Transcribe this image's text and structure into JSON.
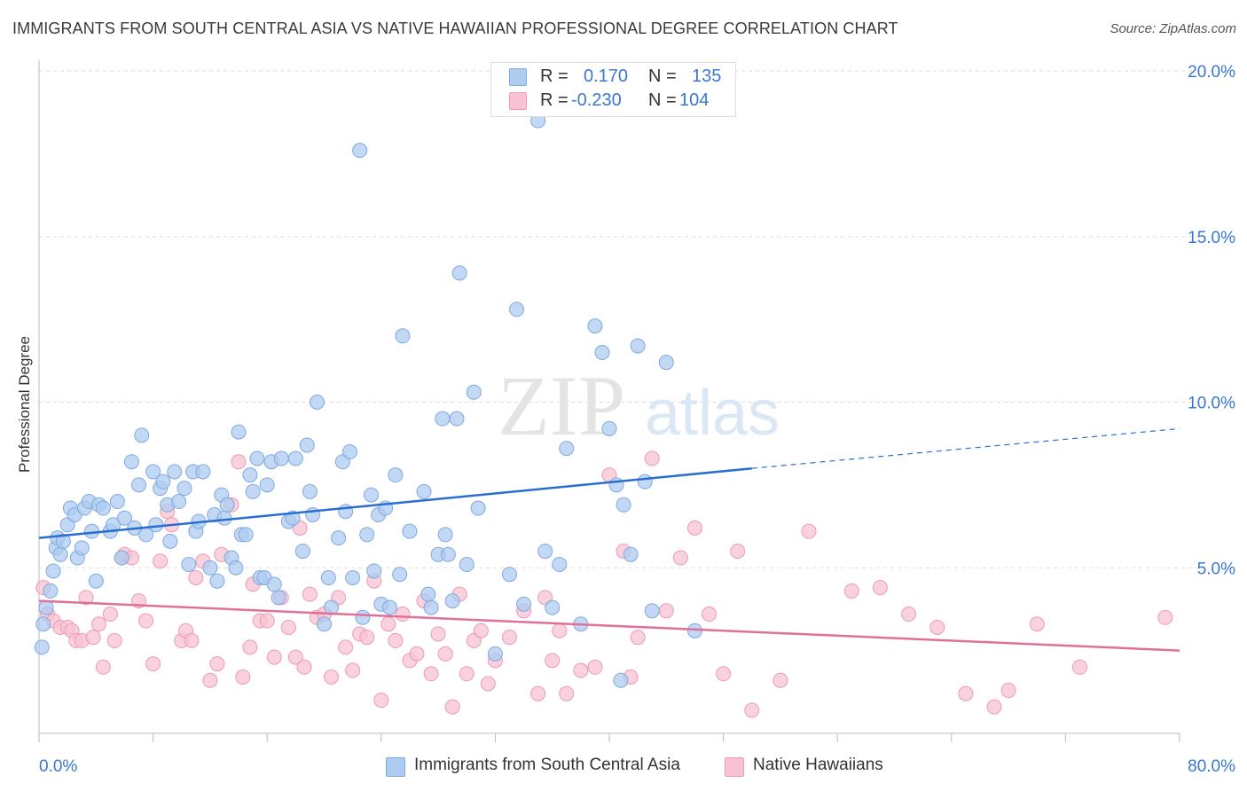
{
  "title": "IMMIGRANTS FROM SOUTH CENTRAL ASIA VS NATIVE HAWAIIAN PROFESSIONAL DEGREE CORRELATION CHART",
  "source": "Source: ZipAtlas.com",
  "watermark": {
    "zip": "ZIP",
    "atlas": "atlas"
  },
  "legend": {
    "r_label": "R =",
    "n_label": "N =",
    "series": [
      {
        "r": "0.170",
        "n": "135"
      },
      {
        "r": "-0.230",
        "n": "104"
      }
    ]
  },
  "colors": {
    "blue_fill": "#aecbf0",
    "blue_stroke": "#7eaae0",
    "blue_line": "#2a6fd0",
    "pink_fill": "#f7c3d2",
    "pink_stroke": "#ee9ab4",
    "pink_line": "#e0709a",
    "axis_text": "#3a78d0",
    "grid": "#dddddd"
  },
  "chart_data": {
    "type": "scatter",
    "title": "IMMIGRANTS FROM SOUTH CENTRAL ASIA VS NATIVE HAWAIIAN PROFESSIONAL DEGREE CORRELATION CHART",
    "xlabel": "",
    "ylabel": "Professional Degree",
    "xlim": [
      0,
      80
    ],
    "ylim": [
      0,
      20
    ],
    "x_tick_labels": [
      "0.0%",
      "80.0%"
    ],
    "y_ticks": [
      5,
      10,
      15,
      20
    ],
    "y_tick_labels": [
      "5.0%",
      "10.0%",
      "15.0%",
      "20.0%"
    ],
    "grid": true,
    "legend_position": "top-center",
    "series": [
      {
        "name": "Immigrants from South Central Asia",
        "color": "#aecbf0",
        "trend": {
          "x": [
            0,
            50
          ],
          "y": [
            5.9,
            8.0
          ],
          "dashed_to": [
            80,
            9.2
          ]
        },
        "points": [
          [
            0.2,
            2.6
          ],
          [
            0.3,
            3.3
          ],
          [
            0.5,
            3.8
          ],
          [
            0.8,
            4.3
          ],
          [
            1.0,
            4.9
          ],
          [
            1.2,
            5.6
          ],
          [
            1.3,
            5.9
          ],
          [
            1.5,
            5.4
          ],
          [
            1.7,
            5.8
          ],
          [
            2.0,
            6.3
          ],
          [
            2.2,
            6.8
          ],
          [
            2.5,
            6.6
          ],
          [
            2.7,
            5.3
          ],
          [
            3.0,
            5.6
          ],
          [
            3.2,
            6.8
          ],
          [
            3.5,
            7.0
          ],
          [
            3.7,
            6.1
          ],
          [
            4.0,
            4.6
          ],
          [
            4.2,
            6.9
          ],
          [
            4.5,
            6.8
          ],
          [
            5.0,
            6.1
          ],
          [
            5.2,
            6.3
          ],
          [
            5.5,
            7.0
          ],
          [
            5.8,
            5.3
          ],
          [
            6.0,
            6.5
          ],
          [
            6.5,
            8.2
          ],
          [
            6.7,
            6.2
          ],
          [
            7.0,
            7.5
          ],
          [
            7.2,
            9.0
          ],
          [
            7.5,
            6.0
          ],
          [
            8.0,
            7.9
          ],
          [
            8.2,
            6.3
          ],
          [
            8.5,
            7.4
          ],
          [
            8.7,
            7.6
          ],
          [
            9.0,
            6.9
          ],
          [
            9.2,
            5.8
          ],
          [
            9.5,
            7.9
          ],
          [
            9.8,
            7.0
          ],
          [
            10.2,
            7.4
          ],
          [
            10.5,
            5.1
          ],
          [
            10.8,
            7.9
          ],
          [
            11.0,
            6.1
          ],
          [
            11.2,
            6.4
          ],
          [
            11.5,
            7.9
          ],
          [
            12.0,
            5.0
          ],
          [
            12.3,
            6.6
          ],
          [
            12.5,
            4.6
          ],
          [
            12.8,
            7.2
          ],
          [
            13.0,
            6.5
          ],
          [
            13.2,
            6.9
          ],
          [
            13.5,
            5.3
          ],
          [
            13.8,
            5.0
          ],
          [
            14.0,
            9.1
          ],
          [
            14.2,
            6.0
          ],
          [
            14.5,
            6.0
          ],
          [
            14.8,
            7.8
          ],
          [
            15.0,
            7.3
          ],
          [
            15.3,
            8.3
          ],
          [
            15.5,
            4.7
          ],
          [
            15.8,
            4.7
          ],
          [
            16.0,
            7.5
          ],
          [
            16.3,
            8.2
          ],
          [
            16.5,
            4.5
          ],
          [
            16.8,
            4.1
          ],
          [
            17.0,
            8.3
          ],
          [
            17.5,
            6.4
          ],
          [
            17.8,
            6.5
          ],
          [
            18.0,
            8.3
          ],
          [
            18.5,
            5.5
          ],
          [
            18.8,
            8.7
          ],
          [
            19.0,
            7.3
          ],
          [
            19.2,
            6.6
          ],
          [
            19.5,
            10.0
          ],
          [
            20.0,
            3.3
          ],
          [
            20.3,
            4.7
          ],
          [
            20.5,
            3.8
          ],
          [
            21.0,
            5.9
          ],
          [
            21.3,
            8.2
          ],
          [
            21.5,
            6.7
          ],
          [
            21.8,
            8.5
          ],
          [
            22.0,
            4.7
          ],
          [
            22.5,
            17.6
          ],
          [
            22.7,
            3.5
          ],
          [
            23.0,
            6.0
          ],
          [
            23.3,
            7.2
          ],
          [
            23.5,
            4.9
          ],
          [
            23.8,
            6.6
          ],
          [
            24.0,
            3.9
          ],
          [
            24.3,
            6.8
          ],
          [
            24.6,
            3.8
          ],
          [
            25.0,
            7.8
          ],
          [
            25.3,
            4.8
          ],
          [
            25.5,
            12.0
          ],
          [
            26.0,
            6.1
          ],
          [
            27.0,
            7.3
          ],
          [
            27.3,
            4.2
          ],
          [
            27.5,
            3.8
          ],
          [
            28.0,
            5.4
          ],
          [
            28.3,
            9.5
          ],
          [
            28.5,
            6.0
          ],
          [
            28.7,
            5.4
          ],
          [
            29.0,
            4.0
          ],
          [
            29.3,
            9.5
          ],
          [
            29.5,
            13.9
          ],
          [
            30.0,
            5.1
          ],
          [
            30.5,
            10.3
          ],
          [
            30.8,
            6.8
          ],
          [
            32.0,
            2.4
          ],
          [
            33.0,
            4.8
          ],
          [
            33.5,
            12.8
          ],
          [
            34.0,
            3.9
          ],
          [
            35.0,
            18.5
          ],
          [
            35.5,
            5.5
          ],
          [
            36.0,
            3.8
          ],
          [
            36.5,
            5.1
          ],
          [
            37.0,
            8.6
          ],
          [
            38.0,
            3.3
          ],
          [
            39.0,
            12.3
          ],
          [
            39.5,
            11.5
          ],
          [
            40.0,
            9.2
          ],
          [
            40.5,
            7.5
          ],
          [
            40.8,
            1.6
          ],
          [
            41.0,
            6.9
          ],
          [
            41.5,
            5.4
          ],
          [
            42.0,
            11.7
          ],
          [
            42.5,
            7.6
          ],
          [
            43.0,
            3.7
          ],
          [
            44.0,
            11.2
          ],
          [
            46.0,
            3.1
          ]
        ]
      },
      {
        "name": "Native Hawaiians",
        "color": "#f7c3d2",
        "trend": {
          "x": [
            0,
            80
          ],
          "y": [
            4.0,
            2.5
          ]
        },
        "points": [
          [
            0.3,
            4.4
          ],
          [
            0.6,
            3.6
          ],
          [
            1.0,
            3.4
          ],
          [
            1.5,
            3.2
          ],
          [
            2.0,
            3.2
          ],
          [
            2.3,
            3.1
          ],
          [
            2.6,
            2.8
          ],
          [
            3.0,
            2.8
          ],
          [
            3.3,
            4.1
          ],
          [
            3.8,
            2.9
          ],
          [
            4.2,
            3.3
          ],
          [
            4.5,
            2.0
          ],
          [
            5.0,
            3.6
          ],
          [
            5.3,
            2.8
          ],
          [
            5.8,
            5.3
          ],
          [
            6.0,
            5.4
          ],
          [
            6.5,
            5.3
          ],
          [
            7.0,
            4.0
          ],
          [
            7.5,
            3.4
          ],
          [
            8.0,
            2.1
          ],
          [
            8.5,
            5.2
          ],
          [
            9.0,
            6.7
          ],
          [
            9.3,
            6.3
          ],
          [
            10.0,
            2.8
          ],
          [
            10.3,
            3.1
          ],
          [
            10.7,
            2.8
          ],
          [
            11.0,
            4.7
          ],
          [
            11.5,
            5.2
          ],
          [
            12.0,
            1.6
          ],
          [
            12.5,
            2.1
          ],
          [
            12.8,
            5.4
          ],
          [
            13.5,
            6.9
          ],
          [
            14.0,
            8.2
          ],
          [
            14.3,
            1.7
          ],
          [
            14.8,
            2.6
          ],
          [
            15.0,
            4.5
          ],
          [
            15.5,
            3.4
          ],
          [
            16.0,
            3.4
          ],
          [
            16.5,
            2.3
          ],
          [
            17.0,
            4.1
          ],
          [
            17.5,
            3.2
          ],
          [
            18.0,
            2.3
          ],
          [
            18.3,
            6.2
          ],
          [
            18.6,
            2.0
          ],
          [
            19.0,
            4.2
          ],
          [
            19.5,
            3.5
          ],
          [
            20.0,
            3.6
          ],
          [
            20.5,
            1.7
          ],
          [
            21.0,
            4.1
          ],
          [
            21.5,
            2.6
          ],
          [
            22.0,
            1.9
          ],
          [
            22.5,
            3.0
          ],
          [
            23.0,
            2.9
          ],
          [
            23.5,
            4.6
          ],
          [
            24.0,
            1.0
          ],
          [
            24.5,
            3.3
          ],
          [
            25.0,
            2.8
          ],
          [
            25.5,
            3.6
          ],
          [
            26.0,
            2.2
          ],
          [
            26.5,
            2.4
          ],
          [
            27.0,
            4.0
          ],
          [
            27.5,
            1.8
          ],
          [
            28.0,
            3.0
          ],
          [
            28.5,
            2.4
          ],
          [
            29.0,
            0.8
          ],
          [
            29.5,
            4.2
          ],
          [
            30.0,
            1.8
          ],
          [
            30.5,
            2.8
          ],
          [
            31.0,
            3.1
          ],
          [
            31.5,
            1.5
          ],
          [
            32.0,
            2.2
          ],
          [
            33.0,
            2.9
          ],
          [
            34.0,
            3.7
          ],
          [
            35.0,
            1.2
          ],
          [
            35.5,
            4.1
          ],
          [
            36.0,
            2.2
          ],
          [
            36.5,
            3.1
          ],
          [
            37.0,
            1.2
          ],
          [
            38.0,
            1.9
          ],
          [
            39.0,
            2.0
          ],
          [
            40.0,
            7.8
          ],
          [
            41.0,
            5.5
          ],
          [
            41.5,
            1.7
          ],
          [
            42.0,
            2.9
          ],
          [
            43.0,
            8.3
          ],
          [
            44.0,
            3.7
          ],
          [
            45.0,
            5.3
          ],
          [
            46.0,
            6.2
          ],
          [
            47.0,
            3.6
          ],
          [
            48.0,
            1.8
          ],
          [
            49.0,
            5.5
          ],
          [
            50.0,
            0.7
          ],
          [
            52.0,
            1.6
          ],
          [
            54.0,
            6.1
          ],
          [
            57.0,
            4.3
          ],
          [
            59.0,
            4.4
          ],
          [
            61.0,
            3.6
          ],
          [
            63.0,
            3.2
          ],
          [
            65.0,
            1.2
          ],
          [
            67.0,
            0.8
          ],
          [
            68.0,
            1.3
          ],
          [
            70.0,
            3.3
          ],
          [
            73.0,
            2.0
          ],
          [
            79.0,
            3.5
          ]
        ]
      }
    ]
  },
  "bottom_legend": [
    "Immigrants from South Central Asia",
    "Native Hawaiians"
  ]
}
